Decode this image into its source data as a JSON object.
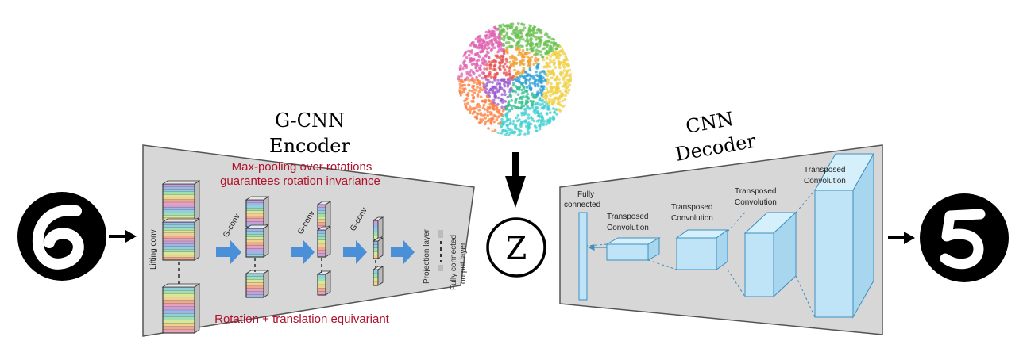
{
  "encoder": {
    "title_line1": "G-CNN",
    "title_line2": "Encoder",
    "note_top_line1": "Max-pooling over rotations",
    "note_top_line2": "guarantees rotation invariance",
    "note_bottom": "Rotation + translation equivariant",
    "lifting_label": "Lifting conv",
    "gconv_label": "G-conv",
    "projection_label": "Projection layer",
    "fc_output_line1": "Fully connected",
    "fc_output_line2": "output layer"
  },
  "latent": {
    "symbol": "Z"
  },
  "decoder": {
    "title_line1": "CNN",
    "title_line2": "Decoder",
    "fc_line1": "Fully",
    "fc_line2": "connected",
    "tconv_line1": "Transposed",
    "tconv_line2": "Convolution"
  },
  "colors": {
    "panel_fill": "#d7d7d7",
    "accent_red": "#b0102a",
    "arrow_blue": "#4a90d9",
    "box_blue": "#bfe4f7",
    "box_stroke": "#3d8fc0"
  },
  "icons": {
    "input_digit": "rotated-digit-5-icon",
    "output_digit": "digit-5-icon",
    "latent_sphere": "latent-sphere-icon"
  }
}
